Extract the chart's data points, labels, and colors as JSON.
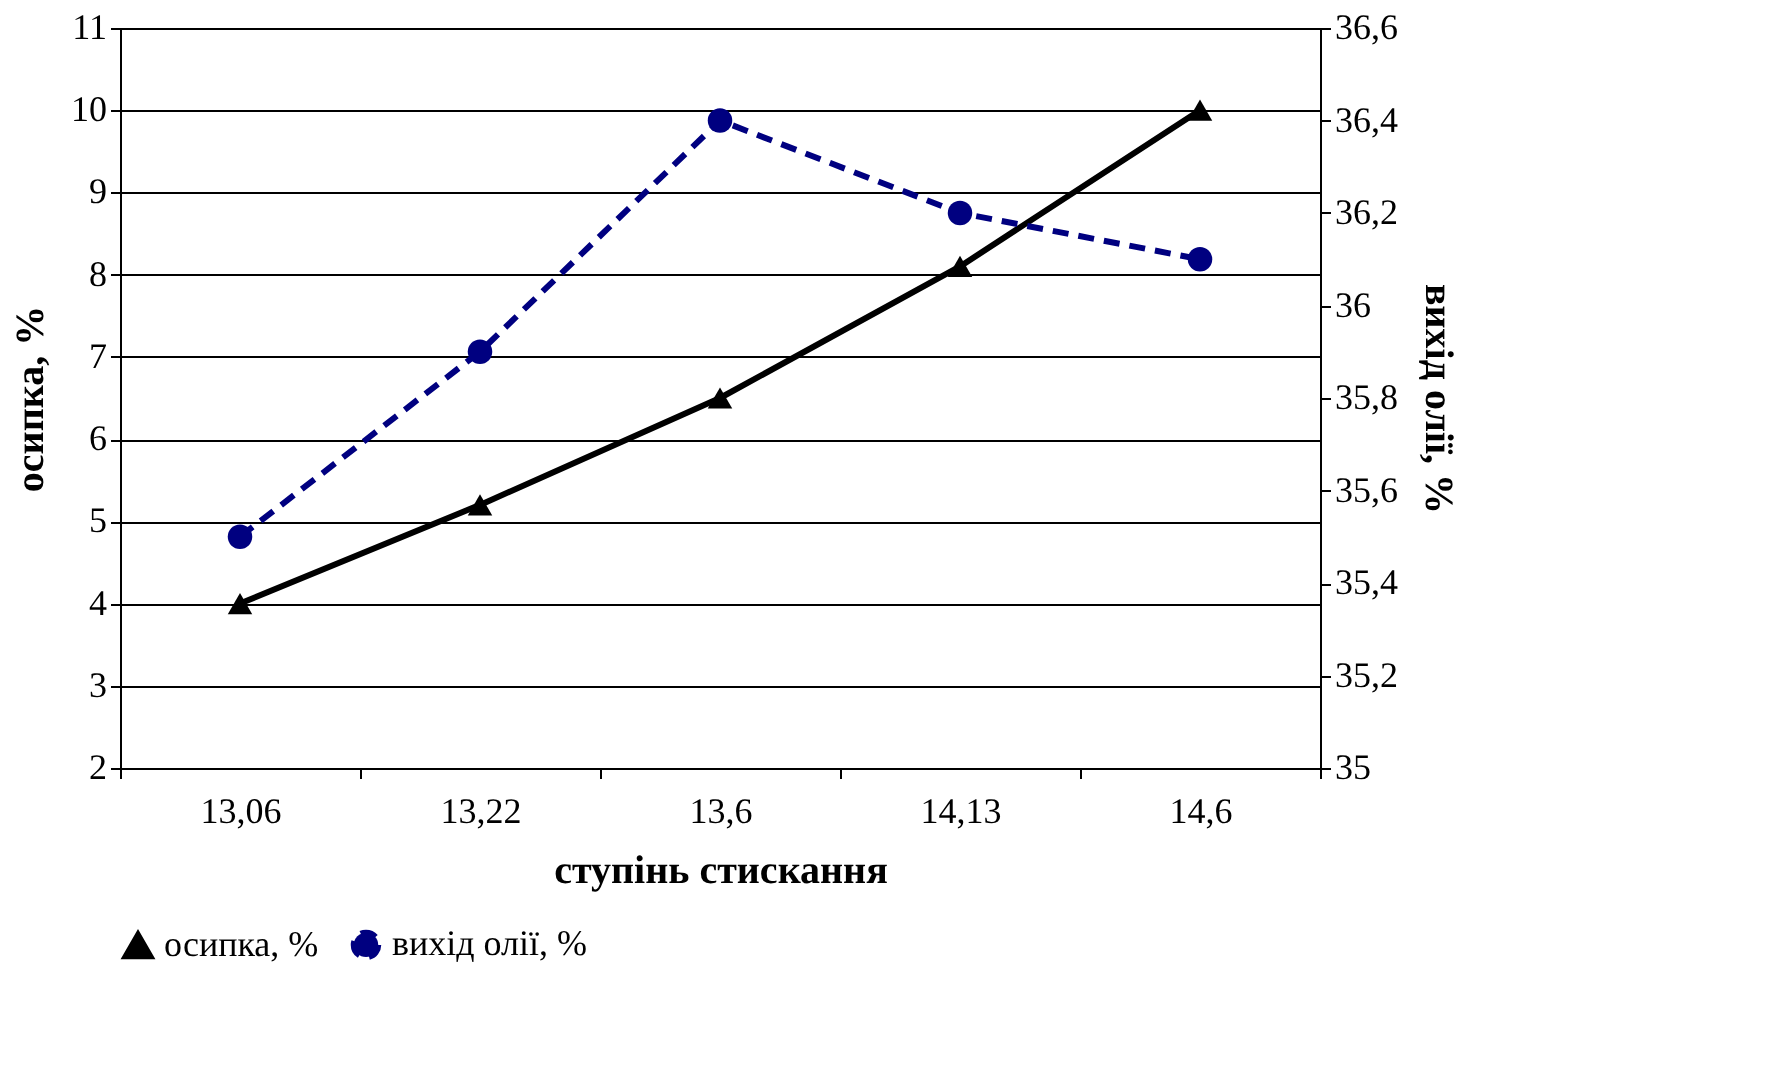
{
  "chart_data": {
    "type": "line",
    "xlabel": "ступінь стискання",
    "ylabel": "осипка, %",
    "y2label": "вихід олії, %",
    "categories": [
      "13,06",
      "13,22",
      "13,6",
      "14,13",
      "14,6"
    ],
    "series": [
      {
        "name": "осипка, %",
        "color": "#000000",
        "values": [
          4,
          5.2,
          6.5,
          8.1,
          10
        ],
        "marker": "triangle",
        "line_style": "solid"
      },
      {
        "name": "вихід олії, %",
        "color": "#000080",
        "values": [
          35.5,
          35.9,
          36.4,
          36.2,
          36.1
        ],
        "marker": "circle",
        "line_style": "dashed",
        "axis": "y2"
      }
    ],
    "ylim": [
      2,
      11
    ],
    "yticks": [
      2,
      3,
      4,
      5,
      6,
      7,
      8,
      9,
      10,
      11
    ],
    "y2lim": [
      35,
      36.6
    ],
    "y2ticks": [
      35,
      {
        "value": 35.2,
        "label": "35,2"
      },
      {
        "value": 35.4,
        "label": "35,4"
      },
      {
        "value": 35.6,
        "label": "35,6"
      },
      {
        "value": 35.8,
        "label": "35,8"
      },
      36,
      {
        "value": 36.2,
        "label": "36,2"
      },
      {
        "value": 36.4,
        "label": "36,4"
      },
      {
        "value": 36.6,
        "label": "36,6"
      }
    ],
    "grid": "y",
    "legend": "bottom"
  }
}
